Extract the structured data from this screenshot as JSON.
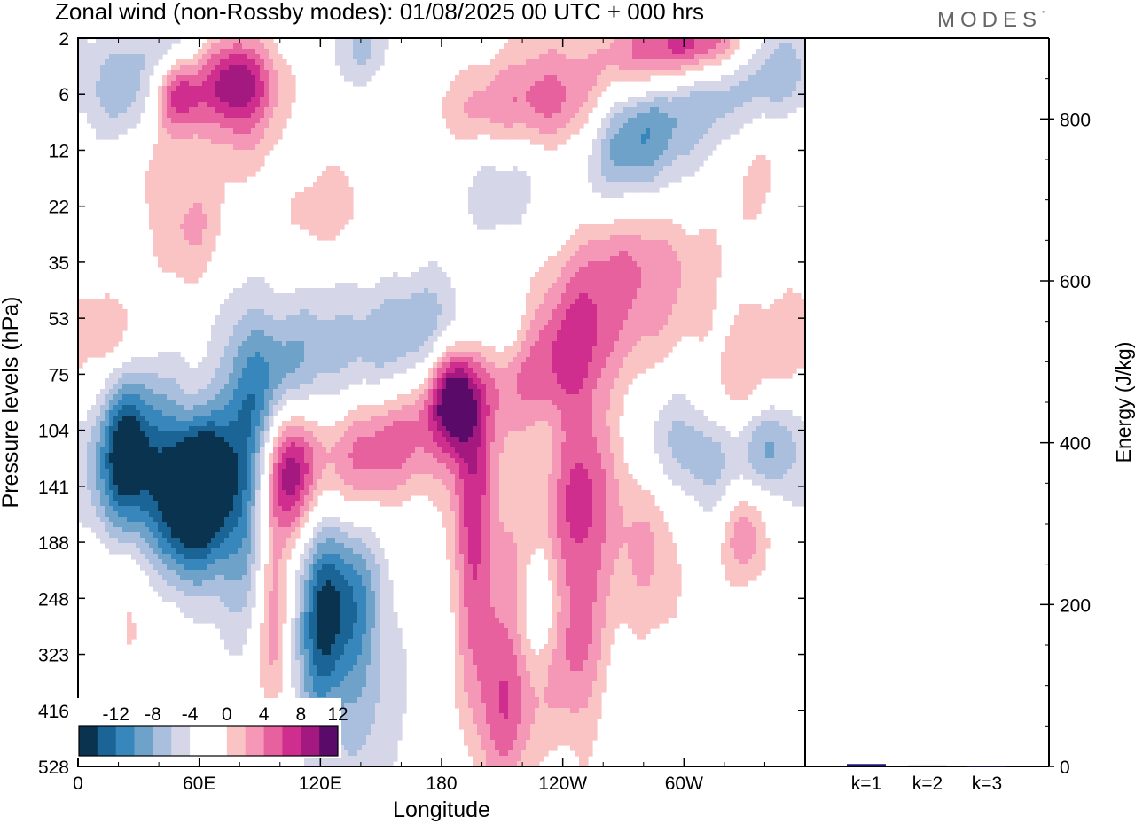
{
  "title": "Zonal wind (non-Rossby modes):  01/08/2025  00 UTC  + 000 hrs",
  "brand": "MODES",
  "brand_mark": "°",
  "chart_data": [
    {
      "type": "heatmap",
      "xlabel": "Longitude",
      "ylabel": "Pressure levels (hPa)",
      "x_range_deg": [
        0,
        360
      ],
      "x_ticks": [
        {
          "deg": 0,
          "label": "0"
        },
        {
          "deg": 60,
          "label": "60E"
        },
        {
          "deg": 120,
          "label": "120E"
        },
        {
          "deg": 180,
          "label": "180"
        },
        {
          "deg": 240,
          "label": "120W"
        },
        {
          "deg": 300,
          "label": "60W"
        }
      ],
      "y_levels": [
        "2",
        "6",
        "12",
        "22",
        "35",
        "53",
        "75",
        "104",
        "141",
        "188",
        "248",
        "323",
        "416",
        "528"
      ],
      "colorbar": {
        "labels": [
          "-12",
          "-8",
          "-4",
          "0",
          "4",
          "8",
          "12"
        ],
        "colors": [
          "#0a3350",
          "#1b6596",
          "#3787bd",
          "#6ea2c9",
          "#a9bfdd",
          "#d5d7e8",
          "#ffffff",
          "#ffffff",
          "#fbc4c4",
          "#f597b7",
          "#e8619f",
          "#d02e8e",
          "#a3197f",
          "#5a0a68"
        ]
      },
      "blobs": [
        {
          "lon": 58,
          "lev": 8.3,
          "rx": 13,
          "ry": 1.0,
          "v": -15
        },
        {
          "lon": 64,
          "lev": 7.6,
          "rx": 9,
          "ry": 0.6,
          "v": -5
        },
        {
          "lon": 30,
          "lev": 7.6,
          "rx": 16,
          "ry": 1.2,
          "v": -9
        },
        {
          "lon": 22,
          "lev": 7.4,
          "rx": 9,
          "ry": 0.9,
          "v": -7
        },
        {
          "lon": 82,
          "lev": 7.7,
          "rx": 10,
          "ry": 2.0,
          "v": -7
        },
        {
          "lon": 100,
          "lev": 6.4,
          "rx": 14,
          "ry": 0.9,
          "v": -5
        },
        {
          "lon": 130,
          "lev": 5.8,
          "rx": 32,
          "ry": 1.0,
          "v": -5
        },
        {
          "lon": 175,
          "lev": 5.1,
          "rx": 22,
          "ry": 0.7,
          "v": -4
        },
        {
          "lon": 210,
          "lev": 5.2,
          "rx": 10,
          "ry": 0.5,
          "v": -2
        },
        {
          "lon": 310,
          "lev": 7.3,
          "rx": 22,
          "ry": 0.8,
          "v": -7
        },
        {
          "lon": 345,
          "lev": 7.2,
          "rx": 10,
          "ry": 0.7,
          "v": -6
        },
        {
          "lon": 305,
          "lev": 0.9,
          "rx": 28,
          "ry": 0.8,
          "v": -8
        },
        {
          "lon": 272,
          "lev": 1.9,
          "rx": 18,
          "ry": 0.8,
          "v": -7
        },
        {
          "lon": 348,
          "lev": 0.6,
          "rx": 12,
          "ry": 0.6,
          "v": -4
        },
        {
          "lon": 22,
          "lev": 0.9,
          "rx": 12,
          "ry": 0.8,
          "v": -5
        },
        {
          "lon": 50,
          "lev": 0.1,
          "rx": 12,
          "ry": 0.5,
          "v": -4
        },
        {
          "lon": 140,
          "lev": 0.2,
          "rx": 12,
          "ry": 0.5,
          "v": -4
        },
        {
          "lon": 215,
          "lev": 2.3,
          "rx": 25,
          "ry": 0.6,
          "v": -3
        },
        {
          "lon": 125,
          "lev": 10.5,
          "rx": 16,
          "ry": 1.8,
          "v": -7
        },
        {
          "lon": 135,
          "lev": 10.0,
          "rx": 10,
          "ry": 1.0,
          "v": -4
        },
        {
          "lon": 120,
          "lev": 10.3,
          "rx": 7,
          "ry": 1.1,
          "v": -5
        },
        {
          "lon": 228,
          "lev": 10.2,
          "rx": 8,
          "ry": 0.8,
          "v": -5
        },
        {
          "lon": 150,
          "lev": 12.0,
          "rx": 12,
          "ry": 1.8,
          "v": -2
        },
        {
          "lon": 210,
          "lev": 3.3,
          "rx": 14,
          "ry": 0.6,
          "v": -2
        },
        {
          "lon": 332,
          "lev": 12.2,
          "rx": 8,
          "ry": 1.2,
          "v": -2
        },
        {
          "lon": 78,
          "lev": 0.8,
          "rx": 14,
          "ry": 0.6,
          "v": 12
        },
        {
          "lon": 50,
          "lev": 1.0,
          "rx": 8,
          "ry": 0.5,
          "v": 8
        },
        {
          "lon": 240,
          "lev": 1.1,
          "rx": 20,
          "ry": 0.8,
          "v": 7
        },
        {
          "lon": 200,
          "lev": 1.3,
          "rx": 22,
          "ry": 0.6,
          "v": 4
        },
        {
          "lon": 285,
          "lev": 0.4,
          "rx": 18,
          "ry": 0.6,
          "v": 10
        },
        {
          "lon": 310,
          "lev": 0.1,
          "rx": 16,
          "ry": 0.4,
          "v": 9
        },
        {
          "lon": 335,
          "lev": 2.0,
          "rx": 16,
          "ry": 1.0,
          "v": 3
        },
        {
          "lon": 280,
          "lev": 3.8,
          "rx": 22,
          "ry": 0.7,
          "v": 4
        },
        {
          "lon": 260,
          "lev": 4.8,
          "rx": 30,
          "ry": 0.8,
          "v": 5
        },
        {
          "lon": 240,
          "lev": 5.6,
          "rx": 22,
          "ry": 0.6,
          "v": 3
        },
        {
          "lon": 342,
          "lev": 6.0,
          "rx": 20,
          "ry": 1.0,
          "v": 4
        },
        {
          "lon": 320,
          "lev": 6.6,
          "rx": 12,
          "ry": 0.6,
          "v": 3
        },
        {
          "lon": 105,
          "lev": 7.7,
          "rx": 8,
          "ry": 0.9,
          "v": 11
        },
        {
          "lon": 130,
          "lev": 7.5,
          "rx": 20,
          "ry": 0.9,
          "v": 7
        },
        {
          "lon": 165,
          "lev": 7.1,
          "rx": 22,
          "ry": 0.7,
          "v": 6
        },
        {
          "lon": 185,
          "lev": 6.4,
          "rx": 8,
          "ry": 0.6,
          "v": 11
        },
        {
          "lon": 215,
          "lev": 6.2,
          "rx": 26,
          "ry": 0.6,
          "v": 4
        },
        {
          "lon": 195,
          "lev": 8.4,
          "rx": 7,
          "ry": 2.0,
          "v": 7
        },
        {
          "lon": 248,
          "lev": 8.8,
          "rx": 10,
          "ry": 2.6,
          "v": 6
        },
        {
          "lon": 212,
          "lev": 9.5,
          "rx": 14,
          "ry": 1.8,
          "v": 4
        },
        {
          "lon": 265,
          "lev": 8.2,
          "rx": 22,
          "ry": 1.0,
          "v": 4
        },
        {
          "lon": 330,
          "lev": 8.8,
          "rx": 8,
          "ry": 0.7,
          "v": 6
        },
        {
          "lon": 97,
          "lev": 10.3,
          "rx": 6,
          "ry": 1.6,
          "v": 7
        },
        {
          "lon": 210,
          "lev": 12.1,
          "rx": 10,
          "ry": 1.0,
          "v": 6
        },
        {
          "lon": 235,
          "lev": 11.0,
          "rx": 16,
          "ry": 1.0,
          "v": 3
        },
        {
          "lon": 15,
          "lev": 5.2,
          "rx": 12,
          "ry": 0.5,
          "v": 4
        },
        {
          "lon": 125,
          "lev": 3.1,
          "rx": 20,
          "ry": 0.7,
          "v": 3
        },
        {
          "lon": 55,
          "lev": 3.4,
          "rx": 14,
          "ry": 0.8,
          "v": 4
        },
        {
          "lon": 35,
          "lev": 2.3,
          "rx": 14,
          "ry": 0.7,
          "v": 2
        },
        {
          "lon": 80,
          "lev": 1.9,
          "rx": 16,
          "ry": 0.6,
          "v": 2
        },
        {
          "lon": 25,
          "lev": 10.0,
          "rx": 10,
          "ry": 1.0,
          "v": 3
        },
        {
          "lon": 285,
          "lev": 9.8,
          "rx": 12,
          "ry": 1.0,
          "v": 3
        }
      ]
    },
    {
      "type": "bar",
      "ylabel": "Energy (J/kg)",
      "ylim": [
        0,
        900
      ],
      "yticks": [
        0,
        200,
        400,
        600,
        800
      ],
      "categories": [
        "k=1",
        "k=2",
        "k=3"
      ],
      "values": [
        3,
        1.2,
        0.6
      ],
      "bar_color": "#1a1a7a"
    }
  ]
}
